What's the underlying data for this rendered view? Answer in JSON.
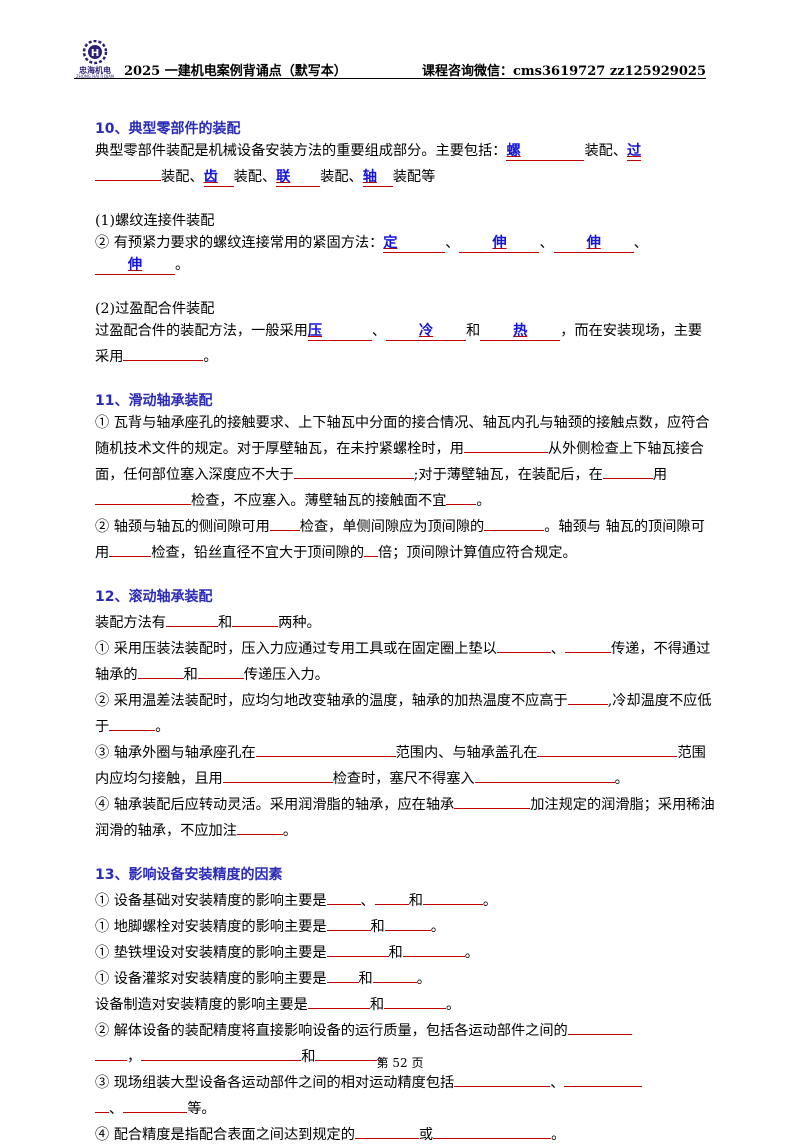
{
  "header": {
    "logo_name": "忠海机电",
    "logo_sub": "ZHONG HAI JI DIAN",
    "title": "2025 一建机电案例背诵点（默写本）",
    "contact": "课程咨询微信：cms3619727 zz125929025"
  },
  "s10": {
    "title": "10、典型零部件的装配",
    "intro_a": "典型零部件装配是机械设备安装方法的重要组成部分。主要包括：",
    "f1": "螺",
    "t1": "装配、",
    "f2": "过",
    "t2": "装配、",
    "f3": "齿",
    "t3": "装配、",
    "f4": "联",
    "t4": "装配、",
    "f5": "轴",
    "t5": "装配等",
    "sub1": "(1)螺纹连接件装配",
    "p1a": "② 有预紧力要求的螺纹连接常用的紧固方法：",
    "g1": "定",
    "g2": "伸",
    "g3": "伸",
    "g4": "伸",
    "sub2": "(2)过盈配合件装配",
    "p2a": "过盈配合件的装配方法，一般采用",
    "h1": "压",
    "h2": "冷",
    "h_and": "和",
    "h3": "热",
    "p2b": "，而在安装现场，主要采用"
  },
  "s11": {
    "title": "11、滑动轴承装配",
    "p1": "① 瓦背与轴承座孔的接触要求、上下轴瓦中分面的接合情况、轴瓦内孔与轴颈的接触点数，应符合随机技术文件的规定。对于厚壁轴瓦，在未拧紧螺栓时，用",
    "p1b": "从外侧检查上下轴瓦接合面，任何部位塞入深度应不大于",
    "p1c": ";对于薄壁轴瓦，在装配后，在",
    "p1d": "用",
    "p1e": "检查，不应塞入。薄壁轴瓦的接触面不宜",
    "p2a": "② 轴颈与轴瓦的侧间隙可用",
    "p2b": "检查，单侧间隙应为顶间隙的",
    "p2c": "。轴颈与 轴瓦的顶间隙可用",
    "p2d": "检查，铅丝直径不宜大于顶间隙的",
    "p2e": "倍；顶间隙计算值应符合规定。"
  },
  "s12": {
    "title": "12、滚动轴承装配",
    "l1a": "装配方法有",
    "l1b": "和",
    "l1c": "两种。",
    "l2a": "① 采用压装法装配时，压入力应通过专用工具或在固定圈上垫以",
    "l2b": "传递，不得通过轴承的",
    "l2c": "和",
    "l2d": "传递压入力。",
    "l3a": "② 采用温差法装配时，应均匀地改变轴承的温度，轴承的加热温度不应高于",
    "l3b": ",冷却温度不应低于",
    "l4a": "③ 轴承外圈与轴承座孔在",
    "l4b": "范围内、与轴承盖孔在",
    "l4c": "范围内应均匀接触，且用",
    "l4d": "检查时，塞尺不得塞入",
    "l5a": "④ 轴承装配后应转动灵活。采用润滑脂的轴承，应在轴承",
    "l5b": "加注规定的润滑脂；采用稀油润滑的轴承，不应加注"
  },
  "s13": {
    "title": "13、影响设备安装精度的因素",
    "a1": "① 设备基础对安装精度的影响主要是",
    "a2": "① 地脚螺栓对安装精度的影响主要是",
    "a3": "① 垫铁埋设对安装精度的影响主要是",
    "a4": "① 设备灌浆对安装精度的影响主要是",
    "a5": "设备制造对安装精度的影响主要是",
    "and": "和",
    "b1": "② 解体设备的装配精度将直接影响设备的运行质量，包括各运动部件之间的",
    "c1": "③ 现场组装大型设备各运动部件之间的相对运动精度包括",
    "c2": "等。",
    "d1": "④ 配合精度是指配合表面之间达到规定的",
    "d2": "或"
  },
  "footer": {
    "page": "第 52 页"
  }
}
